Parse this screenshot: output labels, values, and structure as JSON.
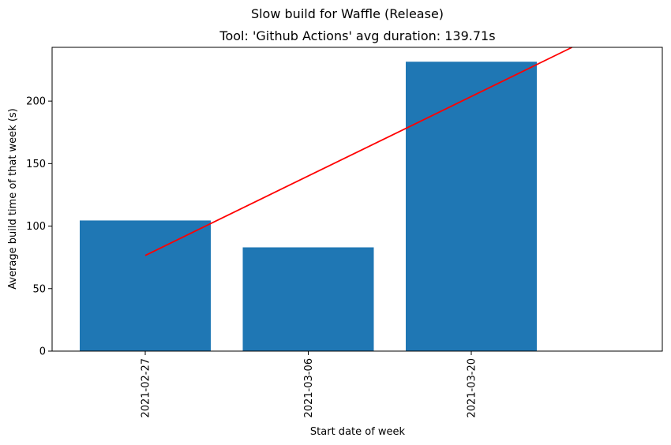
{
  "chart_data": {
    "type": "bar",
    "suptitle": "Slow build for Waffle (Release)",
    "title": "Tool: 'Github Actions' avg duration: 139.71s",
    "xlabel": "Start date of week",
    "ylabel": "Average build time of that week (s)",
    "categories": [
      "2021-02-27",
      "2021-03-06",
      "2021-03-20"
    ],
    "series": [
      {
        "values": [
          104.5,
          83,
          231.5
        ],
        "color": "#1f77b4"
      }
    ],
    "trendline": {
      "color": "#ff0000",
      "start": {
        "category": "2021-02-27",
        "y": 76.5
      },
      "slope_per_category": 63.6
    },
    "ylim": [
      0,
      243
    ],
    "yticks": [
      0,
      50,
      100,
      150,
      200
    ],
    "x_slots": 4,
    "grid": false,
    "legend": "none"
  }
}
